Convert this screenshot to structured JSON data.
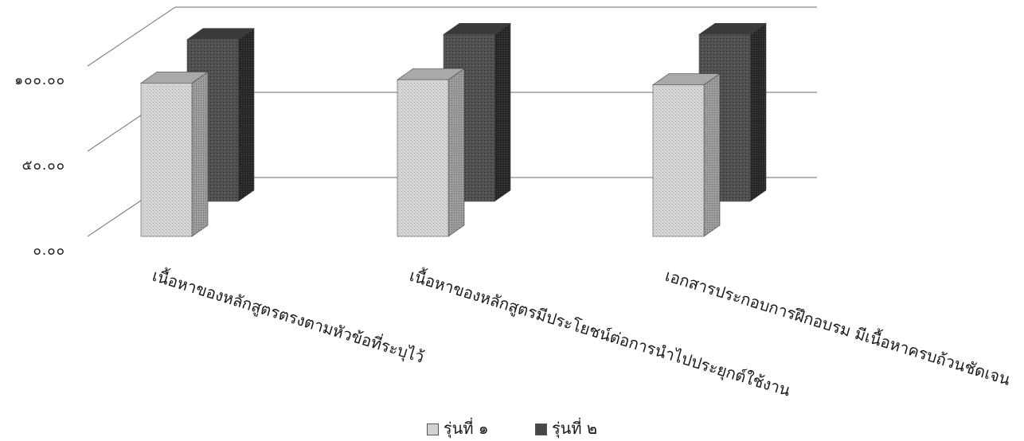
{
  "chart_data": {
    "type": "bar",
    "title": "",
    "xlabel": "",
    "ylabel": "",
    "ylim": [
      0,
      100
    ],
    "yticks": [
      "๐.๐๐",
      "๕๐.๐๐",
      "๑๐๐.๐๐"
    ],
    "tick_values": [
      0,
      50,
      100
    ],
    "grid": true,
    "style": "3d-clustered-column",
    "legend_position": "bottom",
    "categories": [
      "เนื้อหาของหลักสูตรตรงตามหัวข้อที่ระบุไว้",
      "เนื้อหาของหลักสูตรมีประโยชน์ต่อการนำไปประยุกต์ใช้งาน",
      "เอกสารประกอบการฝึกอบรม มีเนื้อหาครบถ้วนชัดเจน"
    ],
    "series": [
      {
        "name": "รุ่นที่ ๑",
        "values": [
          90,
          92,
          89
        ],
        "color": "#d2d2d2"
      },
      {
        "name": "รุ่นที่ ๒",
        "values": [
          95,
          98,
          98
        ],
        "color": "#474747"
      }
    ]
  }
}
